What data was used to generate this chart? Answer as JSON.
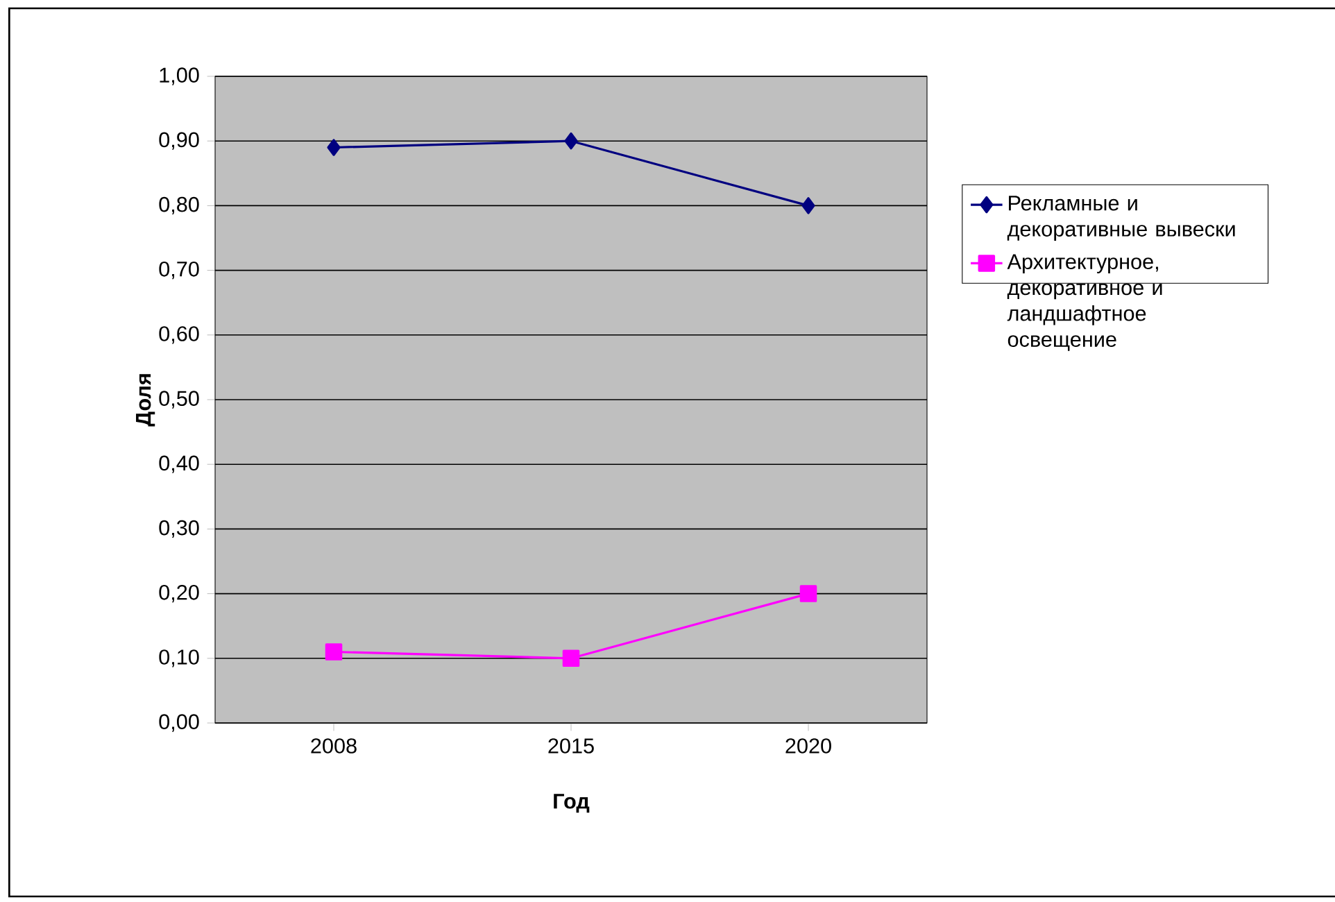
{
  "chart_data": {
    "type": "line",
    "xlabel": "Год",
    "ylabel": "Доля",
    "categories": [
      "2008",
      "2015",
      "2020"
    ],
    "series": [
      {
        "name": "Рекламные и декоративные вывески",
        "color": "#000080",
        "marker": "diamond",
        "values": [
          0.89,
          0.9,
          0.8
        ]
      },
      {
        "name": "Архитектурное, декоративное и ландшафтное освещение",
        "color": "#ff00ff",
        "marker": "square",
        "values": [
          0.11,
          0.1,
          0.2
        ]
      }
    ],
    "ylim": [
      0,
      1
    ],
    "yticks": [
      {
        "value": 0,
        "label": "0,00"
      },
      {
        "value": 0.1,
        "label": "0,10"
      },
      {
        "value": 0.2,
        "label": "0,20"
      },
      {
        "value": 0.3,
        "label": "0,30"
      },
      {
        "value": 0.4,
        "label": "0,40"
      },
      {
        "value": 0.5,
        "label": "0,50"
      },
      {
        "value": 0.6,
        "label": "0,60"
      },
      {
        "value": 0.7,
        "label": "0,70"
      },
      {
        "value": 0.8,
        "label": "0,80"
      },
      {
        "value": 0.9,
        "label": "0,90"
      },
      {
        "value": 1,
        "label": "1,00"
      }
    ],
    "grid": "y",
    "legend": "right",
    "line_style": "solid"
  }
}
